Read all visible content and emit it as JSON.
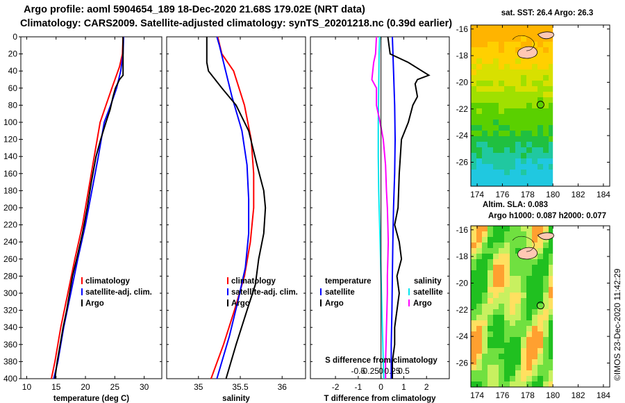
{
  "header": {
    "line1": "Argo profile: aoml 5904654_189 18-Dec-2020 21.68S 179.02E (NRT data)",
    "line2": "Climatology: CARS2009. Satellite-adjusted climatology: synTS_20201218.nc (0.39d earlier)"
  },
  "chart_data": [
    {
      "type": "line",
      "id": "temperature",
      "xlabel": "temperature (deg C)",
      "ylabel": "",
      "xlim": [
        9,
        33
      ],
      "ylim": [
        400,
        0
      ],
      "x_ticks": [
        "10",
        "15",
        "20",
        "25",
        "30"
      ],
      "x_tick_values": [
        10,
        15,
        20,
        25,
        30
      ],
      "y_ticks": [
        "0",
        "20",
        "40",
        "60",
        "80",
        "100",
        "120",
        "140",
        "160",
        "180",
        "200",
        "220",
        "240",
        "260",
        "280",
        "300",
        "320",
        "340",
        "360",
        "380",
        "400"
      ],
      "legend": [
        "climatology",
        "satellite-adj. clim.",
        "Argo"
      ],
      "series": [
        {
          "name": "climatology",
          "color": "#ff0000",
          "points": [
            [
              26.4,
              0
            ],
            [
              26.3,
              20
            ],
            [
              25.8,
              35
            ],
            [
              24.5,
              60
            ],
            [
              23.5,
              80
            ],
            [
              22.5,
              100
            ],
            [
              21.5,
              140
            ],
            [
              20.5,
              180
            ],
            [
              19.5,
              220
            ],
            [
              18.2,
              260
            ],
            [
              17.0,
              300
            ],
            [
              15.8,
              340
            ],
            [
              14.8,
              380
            ],
            [
              14.2,
              400
            ]
          ]
        },
        {
          "name": "satellite-adj. clim.",
          "color": "#0000ff",
          "points": [
            [
              26.5,
              0
            ],
            [
              26.4,
              20
            ],
            [
              26.0,
              40
            ],
            [
              25.3,
              60
            ],
            [
              24.3,
              80
            ],
            [
              23.2,
              100
            ],
            [
              22.2,
              140
            ],
            [
              21.1,
              180
            ],
            [
              20.0,
              220
            ],
            [
              18.7,
              260
            ],
            [
              17.5,
              300
            ],
            [
              16.3,
              340
            ],
            [
              15.3,
              380
            ],
            [
              14.6,
              400
            ]
          ]
        },
        {
          "name": "Argo",
          "color": "#000000",
          "points": [
            [
              26.4,
              0
            ],
            [
              26.4,
              45
            ],
            [
              25.8,
              50
            ],
            [
              25.1,
              60
            ],
            [
              24.7,
              70
            ],
            [
              24.2,
              85
            ],
            [
              23.5,
              100
            ],
            [
              22.6,
              120
            ],
            [
              21.8,
              140
            ],
            [
              21.0,
              170
            ],
            [
              20.3,
              200
            ],
            [
              19.5,
              230
            ],
            [
              18.5,
              260
            ],
            [
              17.8,
              280
            ],
            [
              17.3,
              300
            ],
            [
              16.8,
              320
            ],
            [
              16.2,
              340
            ],
            [
              15.7,
              360
            ],
            [
              15.2,
              380
            ],
            [
              14.8,
              400
            ]
          ]
        }
      ]
    },
    {
      "type": "line",
      "id": "salinity",
      "xlabel": "salinity",
      "ylabel": "",
      "xlim": [
        34.62,
        36.28
      ],
      "ylim": [
        400,
        0
      ],
      "x_ticks": [
        "35",
        "35.5",
        "36"
      ],
      "x_tick_values": [
        35,
        35.5,
        36
      ],
      "legend": [
        "climatology",
        "satellite-adj. clim.",
        "Argo"
      ],
      "series": [
        {
          "name": "climatology",
          "color": "#ff0000",
          "points": [
            [
              35.23,
              0
            ],
            [
              35.28,
              20
            ],
            [
              35.42,
              40
            ],
            [
              35.55,
              80
            ],
            [
              35.63,
              120
            ],
            [
              35.66,
              160
            ],
            [
              35.66,
              200
            ],
            [
              35.62,
              240
            ],
            [
              35.55,
              280
            ],
            [
              35.43,
              320
            ],
            [
              35.3,
              360
            ],
            [
              35.15,
              400
            ]
          ]
        },
        {
          "name": "satellite-adj. clim.",
          "color": "#0000ff",
          "points": [
            [
              35.22,
              0
            ],
            [
              35.25,
              10
            ],
            [
              35.3,
              30
            ],
            [
              35.4,
              70
            ],
            [
              35.52,
              110
            ],
            [
              35.58,
              150
            ],
            [
              35.6,
              190
            ],
            [
              35.6,
              230
            ],
            [
              35.56,
              270
            ],
            [
              35.47,
              310
            ],
            [
              35.37,
              350
            ],
            [
              35.22,
              400
            ]
          ]
        },
        {
          "name": "Argo",
          "color": "#000000",
          "points": [
            [
              35.1,
              0
            ],
            [
              35.1,
              30
            ],
            [
              35.12,
              40
            ],
            [
              35.28,
              60
            ],
            [
              35.45,
              80
            ],
            [
              35.6,
              110
            ],
            [
              35.7,
              150
            ],
            [
              35.78,
              180
            ],
            [
              35.8,
              200
            ],
            [
              35.78,
              230
            ],
            [
              35.72,
              260
            ],
            [
              35.68,
              290
            ],
            [
              35.58,
              320
            ],
            [
              35.45,
              360
            ],
            [
              35.33,
              400
            ]
          ]
        }
      ]
    },
    {
      "type": "line",
      "id": "difference",
      "xlabel": "T difference from climatology",
      "xlabel_top": "S difference from climatology",
      "xlim": [
        -3.1,
        3.0
      ],
      "ylim": [
        400,
        0
      ],
      "x_ticks": [
        "-2",
        "-1",
        "0",
        "1",
        "2"
      ],
      "x_tick_values": [
        -2,
        -1,
        0,
        1,
        2
      ],
      "s_ticks": [
        "-0.5",
        "-0.25",
        "0",
        "0.25",
        "0.5"
      ],
      "s_tick_values": [
        -0.5,
        -0.25,
        0,
        0.25,
        0.5
      ],
      "legend_temperature_heading": "temperature",
      "legend_salinity_heading": "salinity",
      "legend_temperature": [
        "satellite",
        "Argo"
      ],
      "legend_salinity": [
        "satellite",
        "Argo"
      ],
      "series": [
        {
          "name": "T satellite",
          "color": "#0000ff",
          "axis": "T",
          "points": [
            [
              0.5,
              0
            ],
            [
              0.55,
              40
            ],
            [
              0.6,
              80
            ],
            [
              0.62,
              120
            ],
            [
              0.6,
              160
            ],
            [
              0.55,
              200
            ],
            [
              0.52,
              240
            ],
            [
              0.5,
              280
            ],
            [
              0.48,
              320
            ],
            [
              0.45,
              360
            ],
            [
              0.45,
              400
            ]
          ]
        },
        {
          "name": "T Argo",
          "color": "#000000",
          "axis": "T",
          "points": [
            [
              0.3,
              0
            ],
            [
              0.4,
              20
            ],
            [
              1.2,
              30
            ],
            [
              1.8,
              40
            ],
            [
              2.1,
              45
            ],
            [
              1.6,
              50
            ],
            [
              1.5,
              55
            ],
            [
              1.6,
              70
            ],
            [
              1.4,
              80
            ],
            [
              1.2,
              100
            ],
            [
              0.9,
              120
            ],
            [
              0.8,
              160
            ],
            [
              0.75,
              200
            ],
            [
              0.6,
              220
            ],
            [
              0.8,
              240
            ],
            [
              0.9,
              260
            ],
            [
              0.7,
              280
            ],
            [
              0.8,
              300
            ],
            [
              0.7,
              320
            ],
            [
              0.6,
              340
            ],
            [
              0.6,
              360
            ],
            [
              0.5,
              380
            ],
            [
              0.5,
              400
            ]
          ]
        },
        {
          "name": "S satellite",
          "color": "#00e5ee",
          "axis": "S",
          "points": [
            [
              -0.03,
              0
            ],
            [
              -0.04,
              20
            ],
            [
              -0.05,
              60
            ],
            [
              -0.06,
              100
            ],
            [
              -0.06,
              140
            ],
            [
              -0.05,
              180
            ],
            [
              -0.03,
              220
            ],
            [
              -0.01,
              260
            ],
            [
              0.01,
              300
            ],
            [
              0.03,
              340
            ],
            [
              0.05,
              380
            ],
            [
              0.06,
              400
            ]
          ]
        },
        {
          "name": "S Argo",
          "color": "#ff00ff",
          "axis": "S",
          "points": [
            [
              -0.1,
              0
            ],
            [
              -0.12,
              20
            ],
            [
              -0.16,
              30
            ],
            [
              -0.18,
              40
            ],
            [
              -0.2,
              50
            ],
            [
              -0.1,
              60
            ],
            [
              -0.1,
              80
            ],
            [
              -0.02,
              100
            ],
            [
              0.05,
              120
            ],
            [
              0.1,
              150
            ],
            [
              0.12,
              180
            ],
            [
              0.14,
              200
            ],
            [
              0.15,
              220
            ],
            [
              0.16,
              240
            ],
            [
              0.15,
              260
            ],
            [
              0.14,
              280
            ],
            [
              0.14,
              300
            ],
            [
              0.13,
              320
            ],
            [
              0.12,
              340
            ],
            [
              0.11,
              360
            ],
            [
              0.1,
              380
            ],
            [
              0.1,
              400
            ]
          ]
        }
      ]
    },
    {
      "type": "heatmap",
      "id": "sst_map",
      "title": "sat. SST: 26.4 Argo: 26.3",
      "xlim": [
        173.5,
        184.5
      ],
      "ylim": [
        -27.8,
        -15.7
      ],
      "x_ticks": [
        "174",
        "176",
        "178",
        "180",
        "182",
        "184"
      ],
      "x_tick_values": [
        174,
        176,
        178,
        180,
        182,
        184
      ],
      "y_ticks": [
        "-16",
        "-18",
        "-20",
        "-22",
        "-24",
        "-26"
      ],
      "y_tick_values": [
        -16,
        -18,
        -20,
        -22,
        -24,
        -26
      ],
      "data_lon_max": 180,
      "argo_position": [
        179.02,
        -21.68
      ]
    },
    {
      "type": "heatmap",
      "id": "sla_map",
      "title": "Altim. SLA: 0.083",
      "title2": "Argo h1000: 0.087 h2000: 0.077",
      "xlim": [
        173.5,
        184.5
      ],
      "ylim": [
        -27.8,
        -15.7
      ],
      "x_ticks": [
        "174",
        "176",
        "178",
        "180",
        "182",
        "184"
      ],
      "x_tick_values": [
        174,
        176,
        178,
        180,
        182,
        184
      ],
      "y_ticks": [
        "-16",
        "-18",
        "-20",
        "-22",
        "-24",
        "-26"
      ],
      "y_tick_values": [
        -16,
        -18,
        -20,
        -22,
        -24,
        -26
      ],
      "data_lon_max": 180,
      "argo_position": [
        179.02,
        -21.68
      ]
    }
  ],
  "footer": {
    "credit": "©IMOS 23-Dec-2020 11:42:29"
  }
}
